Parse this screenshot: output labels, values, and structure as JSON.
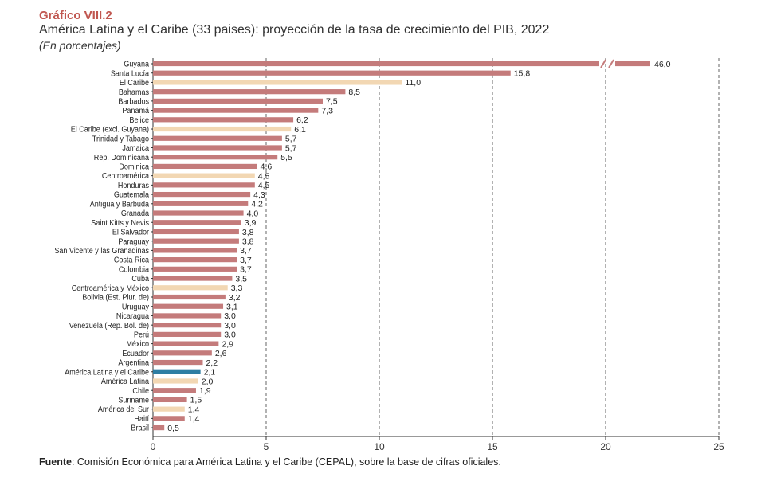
{
  "header": {
    "kicker": "Gráfico VIII.2",
    "title": "América Latina y el Caribe (33 paises): proyección de la tasa de crecimiento del PIB, 2022",
    "subtitle": "(En porcentajes)"
  },
  "source": {
    "label": "Fuente",
    "text": ": Comisión Económica para América Latina y el Caribe (CEPAL), sobre la base de cifras oficiales."
  },
  "colors": {
    "country": "#c47b7b",
    "aggregate": "#f2d7b3",
    "highlight": "#2e7ea3",
    "grid": "#666666",
    "axis": "#333333"
  },
  "chart_data": {
    "type": "bar",
    "orientation": "horizontal",
    "xlim": [
      0,
      25
    ],
    "xticks": [
      0,
      5,
      10,
      15,
      20,
      25
    ],
    "grid": "vertical-dashed",
    "axis_break": {
      "category": "Guyana",
      "note": "axis broken beyond 20"
    },
    "categories": [
      "Guyana",
      "Santa Lucía",
      "El Caribe",
      "Bahamas",
      "Barbados",
      "Panamá",
      "Belice",
      "El Caribe (excl. Guyana)",
      "Trinidad y Tabago",
      "Jamaica",
      "Rep. Dominicana",
      "Dominica",
      "Centroamérica",
      "Honduras",
      "Guatemala",
      "Antigua y Barbuda",
      "Granada",
      "Saint Kitts y Nevis",
      "El Salvador",
      "Paraguay",
      "San Vicente y las Granadinas",
      "Costa Rica",
      "Colombia",
      "Cuba",
      "Centroamérica y México",
      "Bolivia (Est. Plur. de)",
      "Uruguay",
      "Nicaragua",
      "Venezuela (Rep. Bol. de)",
      "Perú",
      "México",
      "Ecuador",
      "Argentina",
      "América Latina y el Caribe",
      "América Latina",
      "Chile",
      "Suriname",
      "América del Sur",
      "Haití",
      "Brasil"
    ],
    "values": [
      46.0,
      15.8,
      11.0,
      8.5,
      7.5,
      7.3,
      6.2,
      6.1,
      5.7,
      5.7,
      5.5,
      4.6,
      4.5,
      4.5,
      4.3,
      4.2,
      4.0,
      3.9,
      3.8,
      3.8,
      3.7,
      3.7,
      3.7,
      3.5,
      3.3,
      3.2,
      3.1,
      3.0,
      3.0,
      3.0,
      2.9,
      2.6,
      2.2,
      2.1,
      2.0,
      1.9,
      1.5,
      1.4,
      1.4,
      0.5
    ],
    "labels": [
      "46,0",
      "15,8",
      "11,0",
      "8,5",
      "7,5",
      "7,3",
      "6,2",
      "6,1",
      "5,7",
      "5,7",
      "5,5",
      "4,6",
      "4,5",
      "4,5",
      "4,3",
      "4,2",
      "4,0",
      "3,9",
      "3,8",
      "3,8",
      "3,7",
      "3,7",
      "3,7",
      "3,5",
      "3,3",
      "3,2",
      "3,1",
      "3,0",
      "3,0",
      "3,0",
      "2,9",
      "2,6",
      "2,2",
      "2,1",
      "2,0",
      "1,9",
      "1,5",
      "1,4",
      "1,4",
      "0,5"
    ],
    "kind": [
      "c",
      "c",
      "a",
      "c",
      "c",
      "c",
      "c",
      "a",
      "c",
      "c",
      "c",
      "c",
      "a",
      "c",
      "c",
      "c",
      "c",
      "c",
      "c",
      "c",
      "c",
      "c",
      "c",
      "c",
      "a",
      "c",
      "c",
      "c",
      "c",
      "c",
      "c",
      "c",
      "c",
      "h",
      "a",
      "c",
      "c",
      "a",
      "c",
      "c"
    ]
  }
}
